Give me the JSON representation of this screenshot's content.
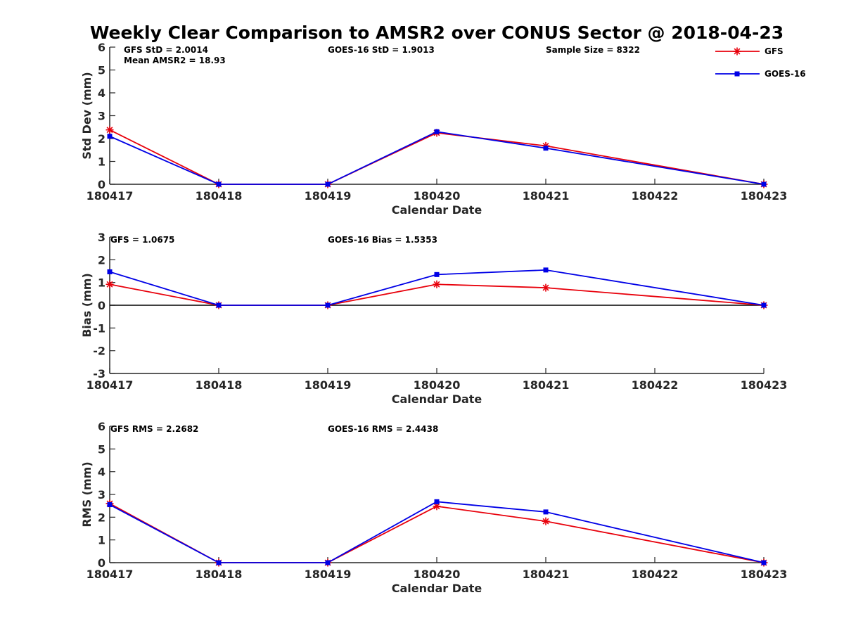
{
  "figure_title": "Weekly Clear Comparison to AMSR2 over CONUS Sector @ 2018-04-23",
  "colors": {
    "gfs": "#e8000b",
    "goes": "#0000e6"
  },
  "legend": {
    "placement": "top-right",
    "entries": [
      {
        "name": "GFS",
        "color": "#e8000b",
        "marker": "asterisk"
      },
      {
        "name": "GOES-16",
        "color": "#0000e6",
        "marker": "square"
      }
    ]
  },
  "chart_data": [
    {
      "type": "line",
      "xlabel": "Calendar Date",
      "ylabel": "Std Dev (mm)",
      "x": [
        "180417",
        "180418",
        "180419",
        "180420",
        "180421",
        "180422",
        "180423"
      ],
      "ylim": [
        0,
        6
      ],
      "yticks": [
        "0",
        "1",
        "2",
        "3",
        "4",
        "5",
        "6"
      ],
      "zero_line": false,
      "annotations": [
        "GFS StD = 2.0014",
        "Mean AMSR2 = 18.93",
        "GOES-16 StD = 1.9013",
        "Sample Size = 8322"
      ],
      "series": [
        {
          "name": "GFS",
          "points": [
            [
              "180417",
              2.38
            ],
            [
              "180418",
              0
            ],
            [
              "180419",
              0
            ],
            [
              "180420",
              2.25
            ],
            [
              "180421",
              1.68
            ],
            [
              "180423",
              0
            ]
          ]
        },
        {
          "name": "GOES-16",
          "points": [
            [
              "180417",
              2.1
            ],
            [
              "180418",
              0
            ],
            [
              "180419",
              0
            ],
            [
              "180420",
              2.3
            ],
            [
              "180421",
              1.58
            ],
            [
              "180423",
              0
            ]
          ]
        }
      ]
    },
    {
      "type": "line",
      "xlabel": "Calendar Date",
      "ylabel": "Bias (mm)",
      "x": [
        "180417",
        "180418",
        "180419",
        "180420",
        "180421",
        "180422",
        "180423"
      ],
      "ylim": [
        -3,
        3
      ],
      "yticks": [
        "-3",
        "-2",
        "-1",
        "0",
        "1",
        "2",
        "3"
      ],
      "zero_line": true,
      "annotations": [
        "GFS = 1.0675",
        "GOES-16 Bias  = 1.5353"
      ],
      "series": [
        {
          "name": "GFS",
          "points": [
            [
              "180417",
              0.92
            ],
            [
              "180418",
              0
            ],
            [
              "180419",
              0
            ],
            [
              "180420",
              0.92
            ],
            [
              "180421",
              0.77
            ],
            [
              "180423",
              0
            ]
          ]
        },
        {
          "name": "GOES-16",
          "points": [
            [
              "180417",
              1.47
            ],
            [
              "180418",
              0
            ],
            [
              "180419",
              0
            ],
            [
              "180420",
              1.35
            ],
            [
              "180421",
              1.55
            ],
            [
              "180423",
              0
            ]
          ]
        }
      ]
    },
    {
      "type": "line",
      "xlabel": "Calendar Date",
      "ylabel": "RMS (mm)",
      "x": [
        "180417",
        "180418",
        "180419",
        "180420",
        "180421",
        "180422",
        "180423"
      ],
      "ylim": [
        0,
        6
      ],
      "yticks": [
        "0",
        "1",
        "2",
        "3",
        "4",
        "5",
        "6"
      ],
      "zero_line": false,
      "annotations": [
        "GFS RMS = 2.2682",
        "GOES-16 RMS = 2.4438"
      ],
      "series": [
        {
          "name": "GFS",
          "points": [
            [
              "180417",
              2.6
            ],
            [
              "180418",
              0
            ],
            [
              "180419",
              0
            ],
            [
              "180420",
              2.48
            ],
            [
              "180421",
              1.82
            ],
            [
              "180423",
              0
            ]
          ]
        },
        {
          "name": "GOES-16",
          "points": [
            [
              "180417",
              2.55
            ],
            [
              "180418",
              0
            ],
            [
              "180419",
              0
            ],
            [
              "180420",
              2.68
            ],
            [
              "180421",
              2.23
            ],
            [
              "180423",
              0
            ]
          ]
        }
      ]
    }
  ]
}
